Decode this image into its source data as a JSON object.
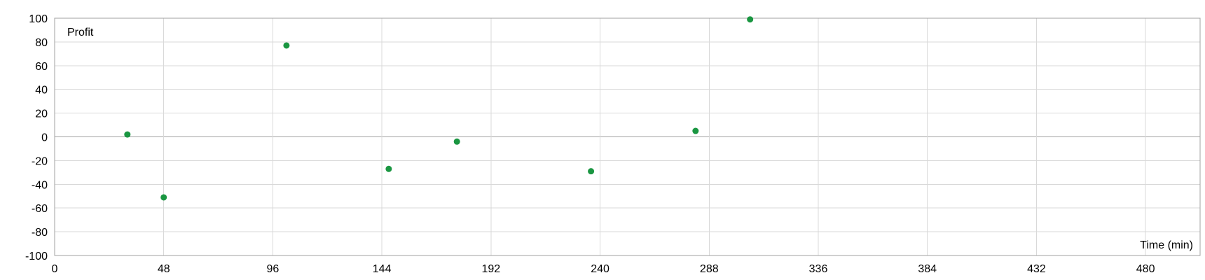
{
  "chart_data": {
    "type": "scatter",
    "xlabel": "Time (min)",
    "ylabel": "Profit",
    "xlim": [
      0,
      504
    ],
    "ylim": [
      -100,
      100
    ],
    "x_ticks": [
      0,
      48,
      96,
      144,
      192,
      240,
      288,
      336,
      384,
      432,
      480
    ],
    "y_ticks": [
      -100,
      -80,
      -60,
      -40,
      -20,
      0,
      20,
      40,
      60,
      80,
      100
    ],
    "grid": true,
    "series": [
      {
        "color": "#1a9641",
        "points": [
          {
            "x": 32,
            "y": 2
          },
          {
            "x": 48,
            "y": -51
          },
          {
            "x": 102,
            "y": 77
          },
          {
            "x": 147,
            "y": -27
          },
          {
            "x": 177,
            "y": -4
          },
          {
            "x": 236,
            "y": -29
          },
          {
            "x": 282,
            "y": 5
          },
          {
            "x": 306,
            "y": 99
          }
        ]
      }
    ],
    "colors": {
      "grid": "#d9d9d9",
      "axis": "#a0a0a0",
      "zero_line": "#a0a0a0"
    }
  }
}
